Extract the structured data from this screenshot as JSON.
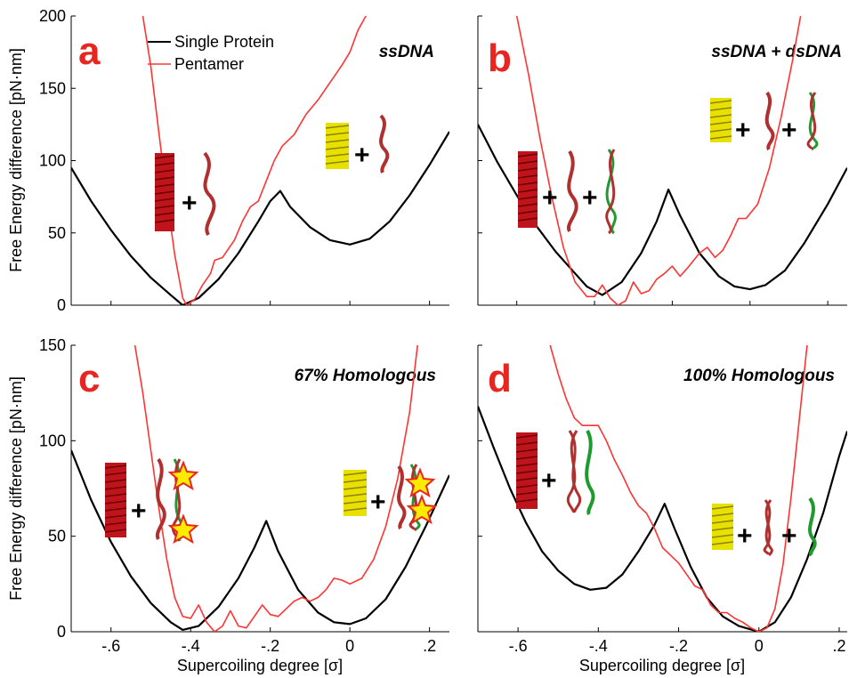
{
  "figure": {
    "legend": {
      "single": "Single Protein",
      "pentamer": "Pentamer"
    },
    "colors": {
      "single": "#000000",
      "pentamer": "#ff3333",
      "letter": "#e8251f",
      "protein_red": "#c0141c",
      "protein_yellow": "#e8e000",
      "strand_red": "#b03030",
      "strand_green": "#1f9a2f",
      "star": "#ffeb00"
    }
  },
  "chart_data": [
    {
      "panel": "a",
      "type": "line",
      "title": "ssDNA",
      "xlim": [
        -0.7,
        0.25
      ],
      "ylim": [
        0,
        200
      ],
      "xticks": [],
      "yticks": [
        0,
        50,
        100,
        150,
        200
      ],
      "ylabel": "Free Energy difference [pN·nm]",
      "xlabel": "",
      "series": [
        {
          "name": "Single Protein",
          "points": [
            [
              -0.7,
              95
            ],
            [
              -0.65,
              72
            ],
            [
              -0.6,
              52
            ],
            [
              -0.55,
              34
            ],
            [
              -0.5,
              19
            ],
            [
              -0.45,
              7
            ],
            [
              -0.42,
              0
            ],
            [
              -0.38,
              5
            ],
            [
              -0.33,
              18
            ],
            [
              -0.28,
              36
            ],
            [
              -0.23,
              58
            ],
            [
              -0.2,
              72
            ],
            [
              -0.175,
              79
            ],
            [
              -0.15,
              68
            ],
            [
              -0.1,
              54
            ],
            [
              -0.05,
              45
            ],
            [
              0,
              42
            ],
            [
              0.05,
              46
            ],
            [
              0.1,
              58
            ],
            [
              0.15,
              76
            ],
            [
              0.2,
              97
            ],
            [
              0.25,
              120
            ]
          ]
        },
        {
          "name": "Pentamer",
          "points": [
            [
              -0.52,
              200
            ],
            [
              -0.5,
              165
            ],
            [
              -0.48,
              120
            ],
            [
              -0.46,
              75
            ],
            [
              -0.44,
              35
            ],
            [
              -0.42,
              5
            ],
            [
              -0.41,
              0
            ],
            [
              -0.39,
              4
            ],
            [
              -0.37,
              14
            ],
            [
              -0.35,
              22
            ],
            [
              -0.34,
              31
            ],
            [
              -0.32,
              33
            ],
            [
              -0.29,
              45
            ],
            [
              -0.27,
              58
            ],
            [
              -0.25,
              68
            ],
            [
              -0.23,
              72
            ],
            [
              -0.21,
              86
            ],
            [
              -0.19,
              100
            ],
            [
              -0.17,
              110
            ],
            [
              -0.14,
              118
            ],
            [
              -0.11,
              132
            ],
            [
              -0.08,
              142
            ],
            [
              -0.06,
              150
            ],
            [
              -0.04,
              158
            ],
            [
              -0.02,
              166
            ],
            [
              0,
              175
            ],
            [
              0.02,
              190
            ],
            [
              0.04,
              200
            ]
          ]
        }
      ]
    },
    {
      "panel": "b",
      "type": "line",
      "title": "ssDNA + dsDNA",
      "xlim": [
        -0.7,
        0.25
      ],
      "ylim": [
        0,
        200
      ],
      "xticks": [],
      "yticks": [],
      "ylabel": "",
      "xlabel": "",
      "series": [
        {
          "name": "Single Protein",
          "points": [
            [
              -0.7,
              125
            ],
            [
              -0.65,
              99
            ],
            [
              -0.6,
              76
            ],
            [
              -0.55,
              55
            ],
            [
              -0.5,
              37
            ],
            [
              -0.45,
              22
            ],
            [
              -0.42,
              13
            ],
            [
              -0.38,
              7
            ],
            [
              -0.33,
              16
            ],
            [
              -0.28,
              36
            ],
            [
              -0.24,
              58
            ],
            [
              -0.21,
              80
            ],
            [
              -0.18,
              62
            ],
            [
              -0.13,
              36
            ],
            [
              -0.08,
              20
            ],
            [
              -0.04,
              13
            ],
            [
              0,
              11
            ],
            [
              0.04,
              14
            ],
            [
              0.09,
              24
            ],
            [
              0.14,
              43
            ],
            [
              0.2,
              70
            ],
            [
              0.25,
              95
            ]
          ]
        },
        {
          "name": "Pentamer",
          "points": [
            [
              -0.6,
              200
            ],
            [
              -0.57,
              160
            ],
            [
              -0.54,
              115
            ],
            [
              -0.51,
              75
            ],
            [
              -0.48,
              40
            ],
            [
              -0.45,
              16
            ],
            [
              -0.42,
              6
            ],
            [
              -0.4,
              6
            ],
            [
              -0.38,
              14
            ],
            [
              -0.36,
              5
            ],
            [
              -0.34,
              0
            ],
            [
              -0.32,
              3
            ],
            [
              -0.3,
              16
            ],
            [
              -0.28,
              8
            ],
            [
              -0.26,
              10
            ],
            [
              -0.24,
              18
            ],
            [
              -0.22,
              22
            ],
            [
              -0.2,
              27
            ],
            [
              -0.18,
              20
            ],
            [
              -0.16,
              26
            ],
            [
              -0.13,
              36
            ],
            [
              -0.11,
              40
            ],
            [
              -0.09,
              33
            ],
            [
              -0.07,
              38
            ],
            [
              -0.05,
              48
            ],
            [
              -0.03,
              60
            ],
            [
              -0.01,
              60
            ],
            [
              0.02,
              70
            ],
            [
              0.05,
              95
            ],
            [
              0.08,
              130
            ],
            [
              0.11,
              170
            ],
            [
              0.13,
              200
            ]
          ]
        }
      ]
    },
    {
      "panel": "c",
      "type": "line",
      "title": "67% Homologous",
      "xlim": [
        -0.7,
        0.25
      ],
      "ylim": [
        0,
        150
      ],
      "xticks": [
        -0.6,
        -0.4,
        -0.2,
        0,
        0.2
      ],
      "yticks": [
        0,
        50,
        100,
        150
      ],
      "ylabel": "Free Energy difference [pN·nm]",
      "xlabel": "Supercoiling degree [σ]",
      "series": [
        {
          "name": "Single Protein",
          "points": [
            [
              -0.7,
              95
            ],
            [
              -0.65,
              69
            ],
            [
              -0.6,
              47
            ],
            [
              -0.55,
              29
            ],
            [
              -0.5,
              15
            ],
            [
              -0.45,
              5
            ],
            [
              -0.42,
              1
            ],
            [
              -0.38,
              3
            ],
            [
              -0.33,
              13
            ],
            [
              -0.28,
              28
            ],
            [
              -0.24,
              44
            ],
            [
              -0.21,
              58
            ],
            [
              -0.18,
              42
            ],
            [
              -0.13,
              22
            ],
            [
              -0.08,
              10
            ],
            [
              -0.04,
              5
            ],
            [
              0,
              4
            ],
            [
              0.04,
              7
            ],
            [
              0.09,
              17
            ],
            [
              0.14,
              34
            ],
            [
              0.19,
              55
            ],
            [
              0.25,
              82
            ]
          ]
        },
        {
          "name": "Pentamer",
          "points": [
            [
              -0.54,
              150
            ],
            [
              -0.52,
              125
            ],
            [
              -0.5,
              95
            ],
            [
              -0.48,
              65
            ],
            [
              -0.46,
              38
            ],
            [
              -0.44,
              18
            ],
            [
              -0.42,
              8
            ],
            [
              -0.4,
              7
            ],
            [
              -0.38,
              14
            ],
            [
              -0.36,
              5
            ],
            [
              -0.34,
              0
            ],
            [
              -0.32,
              3
            ],
            [
              -0.3,
              11
            ],
            [
              -0.28,
              3
            ],
            [
              -0.26,
              2
            ],
            [
              -0.24,
              8
            ],
            [
              -0.22,
              14
            ],
            [
              -0.2,
              9
            ],
            [
              -0.18,
              8
            ],
            [
              -0.16,
              12
            ],
            [
              -0.14,
              16
            ],
            [
              -0.12,
              18
            ],
            [
              -0.1,
              16
            ],
            [
              -0.08,
              18
            ],
            [
              -0.06,
              22
            ],
            [
              -0.04,
              28
            ],
            [
              -0.02,
              27
            ],
            [
              0,
              25
            ],
            [
              0.03,
              28
            ],
            [
              0.06,
              38
            ],
            [
              0.09,
              55
            ],
            [
              0.12,
              80
            ],
            [
              0.15,
              115
            ],
            [
              0.17,
              150
            ]
          ]
        }
      ]
    },
    {
      "panel": "d",
      "type": "line",
      "title": "100% Homologous",
      "xlim": [
        -0.7,
        0.22
      ],
      "ylim": [
        0,
        150
      ],
      "xticks": [
        -0.6,
        -0.4,
        -0.2,
        0,
        0.2
      ],
      "yticks": [],
      "ylabel": "",
      "xlabel": "Supercoiling degree [σ]",
      "series": [
        {
          "name": "Single Protein",
          "points": [
            [
              -0.7,
              118
            ],
            [
              -0.66,
              96
            ],
            [
              -0.62,
              75
            ],
            [
              -0.58,
              57
            ],
            [
              -0.54,
              42
            ],
            [
              -0.5,
              32
            ],
            [
              -0.46,
              25
            ],
            [
              -0.42,
              22
            ],
            [
              -0.38,
              23
            ],
            [
              -0.34,
              30
            ],
            [
              -0.3,
              42
            ],
            [
              -0.26,
              56
            ],
            [
              -0.235,
              67
            ],
            [
              -0.21,
              54
            ],
            [
              -0.17,
              34
            ],
            [
              -0.13,
              18
            ],
            [
              -0.09,
              8
            ],
            [
              -0.05,
              3
            ],
            [
              0,
              0
            ],
            [
              0.04,
              5
            ],
            [
              0.08,
              18
            ],
            [
              0.12,
              38
            ],
            [
              0.16,
              62
            ],
            [
              0.2,
              92
            ],
            [
              0.22,
              105
            ]
          ]
        },
        {
          "name": "Pentamer",
          "points": [
            [
              -0.52,
              150
            ],
            [
              -0.5,
              135
            ],
            [
              -0.48,
              122
            ],
            [
              -0.46,
              112
            ],
            [
              -0.44,
              108
            ],
            [
              -0.42,
              108
            ],
            [
              -0.4,
              108
            ],
            [
              -0.38,
              100
            ],
            [
              -0.36,
              90
            ],
            [
              -0.34,
              82
            ],
            [
              -0.32,
              73
            ],
            [
              -0.3,
              66
            ],
            [
              -0.28,
              62
            ],
            [
              -0.26,
              54
            ],
            [
              -0.24,
              44
            ],
            [
              -0.22,
              40
            ],
            [
              -0.2,
              36
            ],
            [
              -0.18,
              30
            ],
            [
              -0.16,
              24
            ],
            [
              -0.14,
              22
            ],
            [
              -0.12,
              14
            ],
            [
              -0.1,
              10
            ],
            [
              -0.08,
              10
            ],
            [
              -0.06,
              7
            ],
            [
              -0.04,
              5
            ],
            [
              -0.02,
              2
            ],
            [
              0,
              0
            ],
            [
              0.02,
              2
            ],
            [
              0.04,
              12
            ],
            [
              0.06,
              35
            ],
            [
              0.08,
              70
            ],
            [
              0.1,
              110
            ],
            [
              0.12,
              150
            ]
          ]
        }
      ]
    }
  ]
}
